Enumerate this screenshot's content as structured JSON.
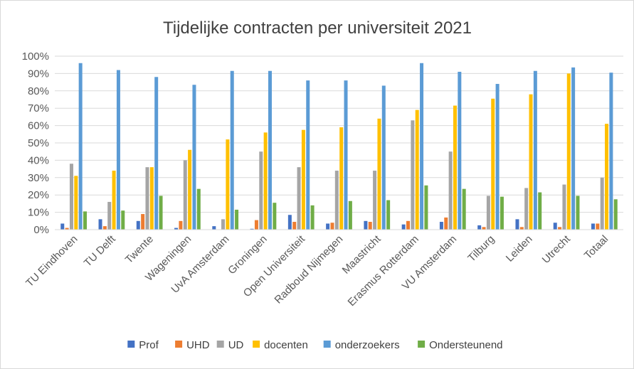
{
  "chart_data": {
    "type": "bar",
    "title": "Tijdelijke contracten per universiteit 2021",
    "xlabel": "",
    "ylabel": "",
    "ylim": [
      0,
      100
    ],
    "y_ticks": [
      "0%",
      "10%",
      "20%",
      "30%",
      "40%",
      "50%",
      "60%",
      "70%",
      "80%",
      "90%",
      "100%"
    ],
    "grid": true,
    "legend_position": "bottom",
    "categories": [
      "TU Eindhoven",
      "TU Delft",
      "Twente",
      "Wageningen",
      "UvA Amsterdam",
      "Groningen",
      "Open Universiteit",
      "Radboud Nijmegen",
      "Maastricht",
      "Erasmus Rotterdam",
      "VU Amsterdam",
      "Tilburg",
      "Leiden",
      "Utrecht",
      "Totaal"
    ],
    "series": [
      {
        "name": "Prof",
        "color": "#4472c4",
        "values": [
          3.5,
          6,
          5,
          1,
          2,
          0.5,
          8.5,
          3.5,
          5,
          3,
          4.5,
          2.5,
          6,
          4,
          3.5
        ]
      },
      {
        "name": "UHD",
        "color": "#ed7d31",
        "values": [
          1,
          2,
          9,
          5,
          0,
          5.5,
          4.5,
          4,
          4.5,
          5,
          7,
          1.5,
          1.5,
          1.5,
          3.5
        ]
      },
      {
        "name": "UD",
        "color": "#a5a5a5",
        "values": [
          38,
          16,
          36,
          40,
          6,
          45,
          36,
          34,
          34,
          63,
          45,
          19.5,
          24,
          26,
          30
        ]
      },
      {
        "name": "docenten",
        "color": "#ffc000",
        "values": [
          31,
          34,
          36,
          46,
          52,
          56,
          57.5,
          59,
          64,
          69,
          71.5,
          75.5,
          78,
          90,
          61
        ]
      },
      {
        "name": "onderzoekers",
        "color": "#5b9bd5",
        "values": [
          96,
          92,
          88,
          83.5,
          91.5,
          91.5,
          86,
          86,
          83,
          96,
          91,
          84,
          91.5,
          93.5,
          90.5
        ]
      },
      {
        "name": "Ondersteunend",
        "color": "#70ad47",
        "values": [
          10.5,
          11,
          19.5,
          23.5,
          11.5,
          15.5,
          14,
          16.5,
          17,
          25.5,
          23.5,
          19,
          21.5,
          19.5,
          17.5
        ]
      }
    ]
  }
}
